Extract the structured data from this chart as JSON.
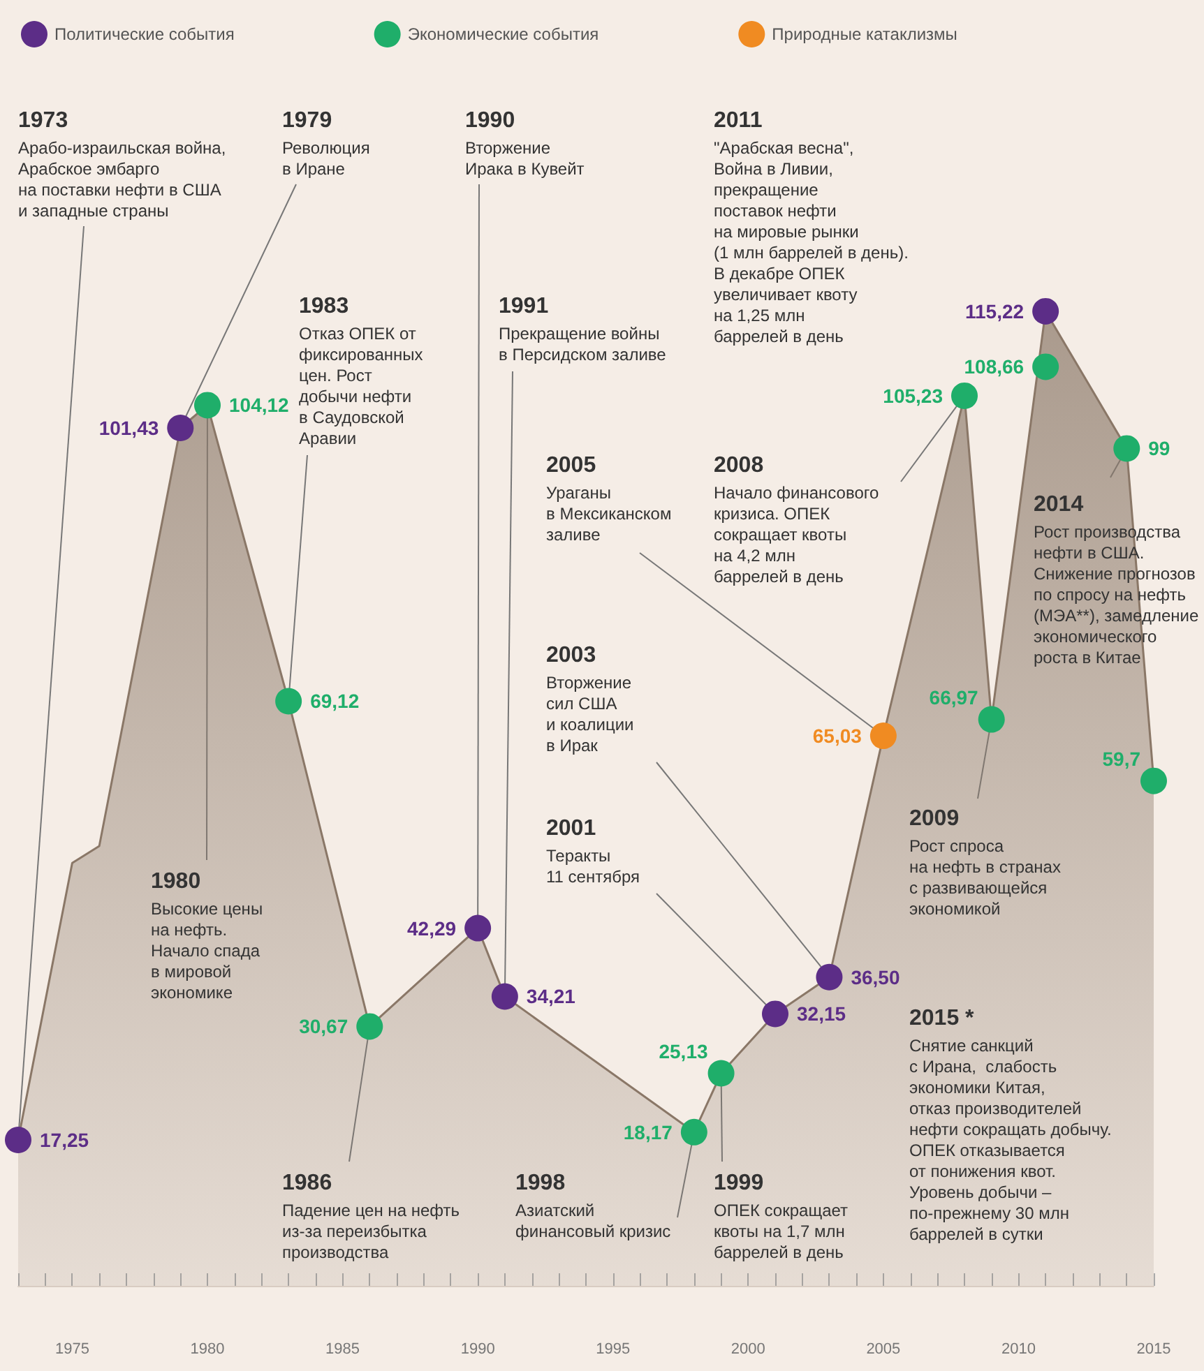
{
  "chart_data": {
    "type": "area",
    "xlim": [
      1973,
      2015
    ],
    "xticks": [
      {
        "value": 1973,
        "label": null
      },
      {
        "value": 1974,
        "label": null
      },
      1975,
      {
        "value": 1976,
        "label": null
      },
      {
        "value": 1977,
        "label": null
      },
      {
        "value": 1978,
        "label": null
      },
      {
        "value": 1979,
        "label": null
      },
      1980,
      {
        "value": 1981,
        "label": null
      },
      {
        "value": 1982,
        "label": null
      },
      {
        "value": 1983,
        "label": null
      },
      {
        "value": 1984,
        "label": null
      },
      1985,
      {
        "value": 1986,
        "label": null
      },
      {
        "value": 1987,
        "label": null
      },
      {
        "value": 1988,
        "label": null
      },
      {
        "value": 1989,
        "label": null
      },
      1990,
      {
        "value": 1991,
        "label": null
      },
      {
        "value": 1992,
        "label": null
      },
      {
        "value": 1993,
        "label": null
      },
      {
        "value": 1994,
        "label": null
      },
      1995,
      {
        "value": 1996,
        "label": null
      },
      {
        "value": 1997,
        "label": null
      },
      {
        "value": 1998,
        "label": null
      },
      {
        "value": 1999,
        "label": null
      },
      2000,
      {
        "value": 2001,
        "label": null
      },
      {
        "value": 2002,
        "label": null
      },
      {
        "value": 2003,
        "label": null
      },
      {
        "value": 2004,
        "label": null
      },
      2005,
      {
        "value": 2006,
        "label": null
      },
      {
        "value": 2007,
        "label": null
      },
      {
        "value": 2008,
        "label": null
      },
      {
        "value": 2009,
        "label": null
      },
      2010,
      {
        "value": 2011,
        "label": null
      },
      {
        "value": 2012,
        "label": null
      },
      {
        "value": 2013,
        "label": null
      },
      {
        "value": 2014,
        "label": null
      },
      2015
    ],
    "tick_labels": "x",
    "grid": false,
    "legend": "top left",
    "series": [
      {
        "color": "#8a7767",
        "marker": "none",
        "x": [
          1973,
          1975,
          1976,
          1979,
          1980,
          1983,
          1986,
          1990,
          1991,
          1998,
          1999,
          2001,
          2003,
          2005,
          2008,
          2009,
          2011,
          2014,
          2015
        ],
        "values": [
          17.25,
          50,
          52,
          101.43,
          104.12,
          69.12,
          30.67,
          42.29,
          34.21,
          18.17,
          25.13,
          32.15,
          36.5,
          65.03,
          105.23,
          66.97,
          115.22,
          99,
          59.7
        ]
      },
      {
        "type": "scatter",
        "name": "Политические события",
        "color": "#5c2d87",
        "marker": "circle",
        "x": [
          1973,
          1979,
          1990,
          1991,
          2001,
          2003,
          2011
        ],
        "values": [
          17.25,
          101.43,
          42.29,
          34.21,
          32.15,
          36.5,
          115.22
        ],
        "value_labels": [
          "17,25",
          "101,43",
          "42,29",
          "34,21",
          "32,15",
          "36,50",
          "115,22"
        ]
      },
      {
        "type": "scatter",
        "name": "Экономические события",
        "color": "#1fae6a",
        "marker": "circle",
        "x": [
          1980,
          1983,
          1986,
          1998,
          1999,
          2008,
          2009,
          2011,
          2014,
          2015
        ],
        "values": [
          104.12,
          69.12,
          30.67,
          18.17,
          25.13,
          105.23,
          66.97,
          108.66,
          99,
          59.7
        ],
        "value_labels": [
          "104,12",
          "69,12",
          "30,67",
          "18,17",
          "25,13",
          "105,23",
          "66,97",
          "108,66",
          "99",
          "59,7"
        ]
      },
      {
        "type": "scatter",
        "name": "Природные катаклизмы",
        "color": "#f08b22",
        "marker": "circle",
        "x": [
          2005
        ],
        "values": [
          65.03
        ],
        "value_labels": [
          "65,03"
        ]
      }
    ],
    "annotations": [
      {
        "text": "1973\nАрабо-израильская война,\nАрабское эмбарго\nна поставки нефти в США\nи западные страны",
        "x": 1973,
        "y": 17.25
      },
      {
        "text": "1979\nРеволюция\nв Иране",
        "x": 1979,
        "y": 101.43
      },
      {
        "text": "1990\nВторжение\nИрака в Кувейт",
        "x": 1990,
        "y": 42.29
      },
      "2011\n\"Арабская весна\",\nВойна в Ливии,\nпрекращение\nпоставок нефти\nна мировые рынки\n(1 млн баррелей в день).\nВ декабре ОПЕК\nувеличивает квоту\nна 1,25 млн\nбаррелей в день",
      {
        "text": "1983\nОтказ ОПЕК от\nфиксированных\nцен. Рост\nдобычи нефти\nв Саудовской\nАравии",
        "x": 1983,
        "y": 69.12
      },
      {
        "text": "1991\nПрекращение войны\nв Персидском заливе",
        "x": 1991,
        "y": 34.21
      },
      {
        "text": "2005\nУраганы\nв Мексиканском\nзаливе",
        "x": 2005,
        "y": 65.03
      },
      {
        "text": "2008\nНачало финансового\nкризиса. ОПЕК\nсокращает квоты\nна 4,2 млн\nбаррелей в день",
        "x": 2008,
        "y": 105.23
      },
      {
        "text": "2014\nРост производства\nнефти в США.\nСнижение прогнозов\nпо спросу на нефть\n(МЭА**), замедление\nэкономического\nроста в Китае",
        "x": 2014,
        "y": 99
      },
      {
        "text": "2003\nВторжение\nсил США\nи коалиции\nв Ирак",
        "x": 2003,
        "y": 36.5
      },
      {
        "text": "1980\nВысокие цены\nна нефть.\nНачало спада\nв мировой\nэкономике",
        "x": 1980,
        "y": 104.12
      },
      {
        "text": "2009\nРост спроса\nна нефть в странах\nс развивающейся\nэкономикой",
        "x": 2009,
        "y": 66.97
      },
      {
        "text": "2001\nТеракты\n11 сентября",
        "x": 2001,
        "y": 32.15
      },
      "2015 *\nСнятие санкций\nс Ирана,  слабость\nэкономики Китая,\nотказ производителей\nнефти сокращать добычу.\nОПЕК отказывается\nот понижения квот.\nУровень добычи –\nпо-прежнему 30 млн\nбаррелей в сутки",
      {
        "text": "1986\nПадение цен на нефть\nиз-за переизбытка\nпроизводства",
        "x": 1986,
        "y": 30.67
      },
      {
        "text": "1998\nАзиатский\nфинансовый кризис",
        "x": 1998,
        "y": 18.17
      },
      {
        "text": "1999\nОПЕК сокращает\nквоты на 1,7 млн\nбаррелей в день",
        "x": 1999,
        "y": 25.13
      }
    ]
  }
}
